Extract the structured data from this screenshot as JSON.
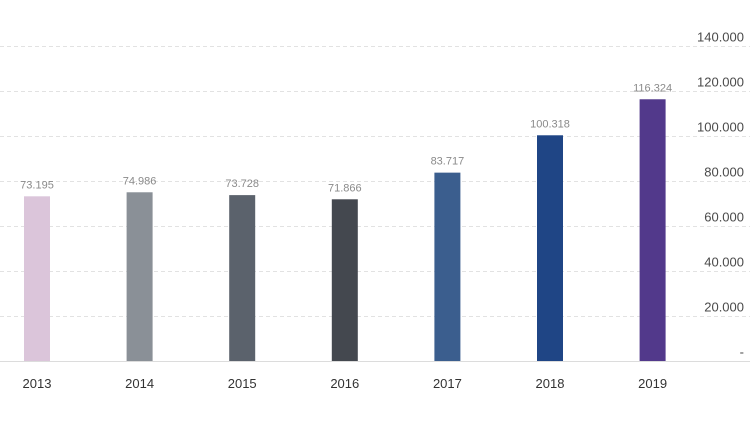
{
  "chart_data": {
    "type": "bar",
    "categories": [
      "2013",
      "2014",
      "2015",
      "2016",
      "2017",
      "2018",
      "2019"
    ],
    "values": [
      73.195,
      74.986,
      73.728,
      71.866,
      83.717,
      100.318,
      116.324
    ],
    "data_labels": [
      "73.195",
      "74.986",
      "73.728",
      "71.866",
      "83.717",
      "100.318",
      "116.324"
    ],
    "bar_colors": [
      "#dbc5da",
      "#8a9097",
      "#5b626c",
      "#44484f",
      "#3b5e8e",
      "#1f4585",
      "#52398b"
    ],
    "ylim": [
      0,
      140
    ],
    "yticks": [
      {
        "value": 140,
        "label": "140.000"
      },
      {
        "value": 120,
        "label": "120.000"
      },
      {
        "value": 100,
        "label": "100.000"
      },
      {
        "value": 80,
        "label": "80.000"
      },
      {
        "value": 60,
        "label": "60.000"
      },
      {
        "value": 40,
        "label": "40.000"
      },
      {
        "value": 20,
        "label": "20.000"
      },
      {
        "value": 0,
        "label": "-"
      }
    ],
    "y_axis_position": "right",
    "grid": true,
    "title": "",
    "xlabel": "",
    "ylabel": ""
  }
}
